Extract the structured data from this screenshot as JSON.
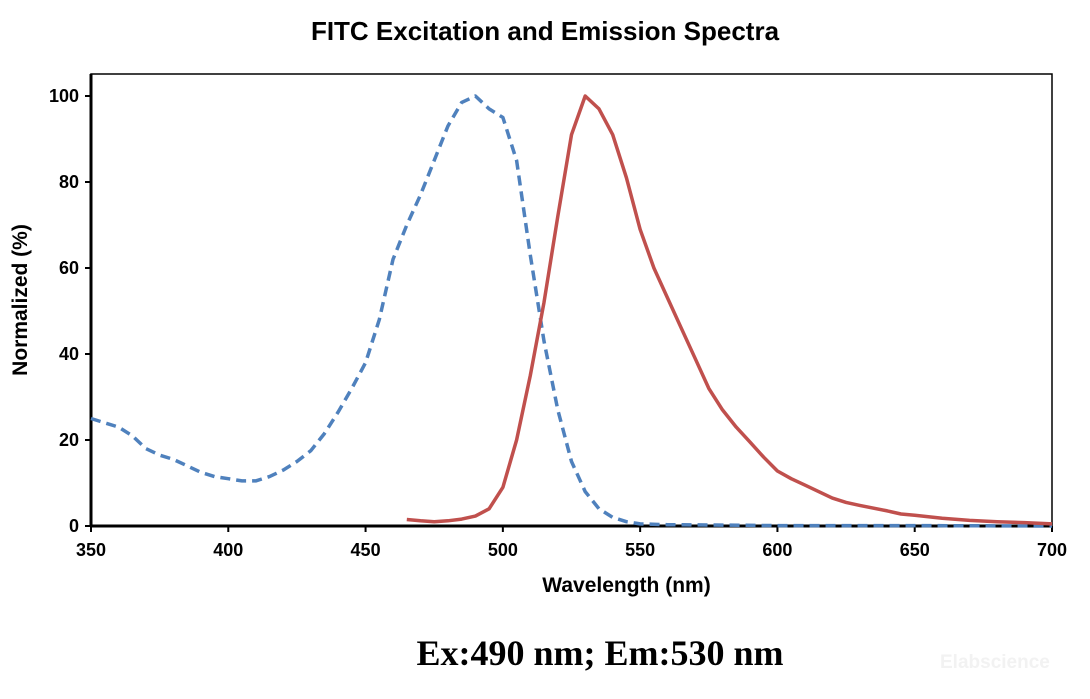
{
  "chart_data": {
    "type": "line",
    "title": "FITC Excitation and Emission Spectra",
    "xlabel": "Wavelength (nm)",
    "ylabel": "Normalized (%)",
    "xlim": [
      350,
      700
    ],
    "ylim": [
      0,
      100
    ],
    "xticks": [
      350,
      400,
      450,
      500,
      550,
      600,
      650,
      700
    ],
    "yticks": [
      0,
      20,
      40,
      60,
      80,
      100
    ],
    "grid": false,
    "legend": "none",
    "series": [
      {
        "style": "dashed",
        "color": "#4f81bd",
        "x": [
          350,
          355,
          360,
          365,
          370,
          375,
          380,
          385,
          390,
          395,
          400,
          405,
          410,
          415,
          420,
          425,
          430,
          435,
          440,
          445,
          450,
          455,
          460,
          465,
          470,
          475,
          480,
          485,
          490,
          495,
          500,
          505,
          510,
          515,
          520,
          525,
          530,
          535,
          540,
          545,
          550,
          560,
          580,
          600,
          650,
          700
        ],
        "y": [
          25,
          24,
          23,
          21,
          18,
          16.5,
          15.5,
          14,
          12.5,
          11.5,
          11,
          10.5,
          10.5,
          11.5,
          13,
          15,
          17.5,
          21.5,
          26.5,
          32,
          38,
          48,
          62,
          70,
          77,
          85,
          93,
          98.5,
          100,
          97,
          95,
          85,
          63,
          43,
          27,
          15,
          8,
          4,
          2,
          1,
          0.5,
          0.3,
          0.2,
          0.1,
          0.1,
          0
        ]
      },
      {
        "style": "solid",
        "color": "#c0504d",
        "x": [
          465,
          470,
          475,
          480,
          485,
          490,
          495,
          500,
          505,
          510,
          515,
          520,
          525,
          530,
          535,
          540,
          545,
          550,
          555,
          560,
          565,
          570,
          575,
          580,
          585,
          590,
          595,
          600,
          605,
          610,
          615,
          620,
          625,
          630,
          640,
          645,
          650,
          660,
          670,
          680,
          690,
          700
        ],
        "y": [
          1.5,
          1.2,
          1,
          1.2,
          1.6,
          2.3,
          4,
          9,
          20,
          35,
          52,
          72,
          91,
          100,
          97,
          91,
          81,
          69,
          60,
          53,
          46,
          39,
          32,
          27,
          23,
          19.5,
          16,
          12.8,
          11,
          9.5,
          8,
          6.5,
          5.5,
          4.8,
          3.5,
          2.8,
          2.5,
          1.8,
          1.3,
          1,
          0.8,
          0.5
        ]
      }
    ],
    "annotation": "Ex:490 nm; Em:530 nm"
  },
  "watermark": "Elabscience"
}
